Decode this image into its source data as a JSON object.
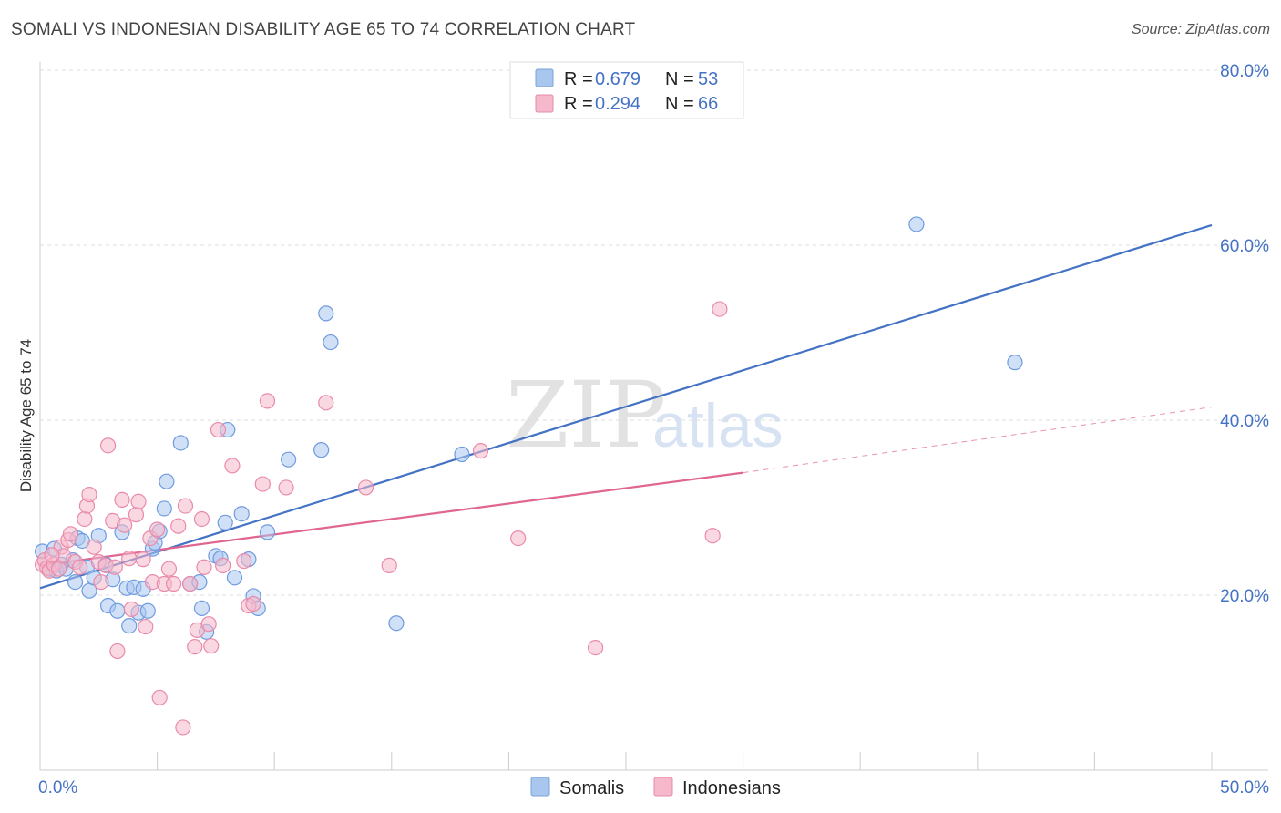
{
  "title": "SOMALI VS INDONESIAN DISABILITY AGE 65 TO 74 CORRELATION CHART",
  "source": "Source: ZipAtlas.com",
  "watermark": {
    "zip": "ZIP",
    "atlas": "atlas"
  },
  "legend": {
    "rows": [
      {
        "r_label": "R =",
        "r_value": "0.679",
        "n_label": "N =",
        "n_value": "53"
      },
      {
        "r_label": "R =",
        "r_value": "0.294",
        "n_label": "N =",
        "n_value": "66"
      }
    ]
  },
  "chart_data": {
    "type": "scatter",
    "ylabel": "Disability Age 65 to 74",
    "xlim": [
      0,
      50
    ],
    "ylim": [
      0,
      80
    ],
    "x_tick_labels": [
      "0.0%",
      "50.0%"
    ],
    "y_ticks": [
      20,
      40,
      60,
      80
    ],
    "y_tick_labels": [
      "20.0%",
      "40.0%",
      "60.0%",
      "80.0%"
    ],
    "grid": true,
    "legend_position": "top-center",
    "colors": {
      "somalis": "#4472c4",
      "somalis_fill": "#a9c6ee",
      "indonesians": "#e06690",
      "indonesians_fill": "#f6b8cb"
    },
    "series": [
      {
        "name": "Somalis",
        "points": [
          [
            0.1,
            25.0
          ],
          [
            0.4,
            23.0
          ],
          [
            0.6,
            25.3
          ],
          [
            0.7,
            22.8
          ],
          [
            0.9,
            23.5
          ],
          [
            1.1,
            23.0
          ],
          [
            1.4,
            24.0
          ],
          [
            1.5,
            21.5
          ],
          [
            1.6,
            26.5
          ],
          [
            1.8,
            26.2
          ],
          [
            2.0,
            23.2
          ],
          [
            2.1,
            20.5
          ],
          [
            2.3,
            22.0
          ],
          [
            2.5,
            26.8
          ],
          [
            2.8,
            23.5
          ],
          [
            2.9,
            18.8
          ],
          [
            3.1,
            21.8
          ],
          [
            3.3,
            18.2
          ],
          [
            3.5,
            27.2
          ],
          [
            3.7,
            20.8
          ],
          [
            3.8,
            16.5
          ],
          [
            4.0,
            20.9
          ],
          [
            4.2,
            18.0
          ],
          [
            4.4,
            20.7
          ],
          [
            4.6,
            18.2
          ],
          [
            4.8,
            25.3
          ],
          [
            4.9,
            26.0
          ],
          [
            5.1,
            27.3
          ],
          [
            5.3,
            29.9
          ],
          [
            5.4,
            33.0
          ],
          [
            6.0,
            37.4
          ],
          [
            6.4,
            21.3
          ],
          [
            6.8,
            21.5
          ],
          [
            6.9,
            18.5
          ],
          [
            7.1,
            15.8
          ],
          [
            7.5,
            24.5
          ],
          [
            7.7,
            24.2
          ],
          [
            7.9,
            28.3
          ],
          [
            8.0,
            38.9
          ],
          [
            8.3,
            22.0
          ],
          [
            8.6,
            29.3
          ],
          [
            8.9,
            24.1
          ],
          [
            9.1,
            19.9
          ],
          [
            9.3,
            18.5
          ],
          [
            9.7,
            27.2
          ],
          [
            10.6,
            35.5
          ],
          [
            12.0,
            36.6
          ],
          [
            12.2,
            52.2
          ],
          [
            12.4,
            48.9
          ],
          [
            15.2,
            16.8
          ],
          [
            18.0,
            36.1
          ],
          [
            37.4,
            62.4
          ],
          [
            41.6,
            46.6
          ]
        ]
      },
      {
        "name": "Indonesians",
        "points": [
          [
            0.1,
            23.5
          ],
          [
            0.2,
            24.0
          ],
          [
            0.3,
            23.1
          ],
          [
            0.4,
            22.8
          ],
          [
            0.6,
            23.5
          ],
          [
            0.8,
            23.0
          ],
          [
            0.9,
            25.5
          ],
          [
            1.0,
            24.5
          ],
          [
            1.2,
            26.3
          ],
          [
            1.3,
            27.0
          ],
          [
            1.5,
            23.8
          ],
          [
            1.7,
            23.2
          ],
          [
            1.9,
            28.7
          ],
          [
            2.0,
            30.2
          ],
          [
            2.1,
            31.5
          ],
          [
            2.3,
            25.5
          ],
          [
            2.5,
            23.8
          ],
          [
            2.6,
            21.5
          ],
          [
            2.8,
            23.4
          ],
          [
            2.9,
            37.1
          ],
          [
            3.1,
            28.5
          ],
          [
            3.2,
            23.2
          ],
          [
            3.3,
            13.6
          ],
          [
            3.5,
            30.9
          ],
          [
            3.6,
            28.0
          ],
          [
            3.8,
            24.2
          ],
          [
            3.9,
            18.4
          ],
          [
            4.1,
            29.2
          ],
          [
            4.2,
            30.7
          ],
          [
            4.4,
            24.1
          ],
          [
            4.5,
            16.4
          ],
          [
            4.7,
            26.5
          ],
          [
            4.8,
            21.5
          ],
          [
            5.0,
            27.5
          ],
          [
            5.1,
            8.3
          ],
          [
            5.3,
            21.3
          ],
          [
            5.5,
            23.0
          ],
          [
            5.7,
            21.3
          ],
          [
            5.9,
            27.9
          ],
          [
            6.1,
            4.9
          ],
          [
            6.2,
            30.2
          ],
          [
            6.4,
            21.3
          ],
          [
            6.6,
            14.1
          ],
          [
            6.7,
            16.0
          ],
          [
            6.9,
            28.7
          ],
          [
            7.0,
            23.2
          ],
          [
            7.2,
            16.7
          ],
          [
            7.3,
            14.2
          ],
          [
            7.6,
            38.9
          ],
          [
            7.8,
            23.4
          ],
          [
            8.2,
            34.8
          ],
          [
            8.7,
            23.9
          ],
          [
            8.9,
            18.8
          ],
          [
            9.1,
            19.0
          ],
          [
            9.5,
            32.7
          ],
          [
            9.7,
            42.2
          ],
          [
            10.5,
            32.3
          ],
          [
            12.2,
            42.0
          ],
          [
            13.9,
            32.3
          ],
          [
            14.9,
            23.4
          ],
          [
            18.8,
            36.5
          ],
          [
            20.4,
            26.5
          ],
          [
            23.7,
            14.0
          ],
          [
            28.7,
            26.8
          ],
          [
            29.0,
            52.7
          ],
          [
            0.5,
            24.6
          ]
        ]
      }
    ],
    "trendlines": [
      {
        "series": "Somalis",
        "x": [
          0,
          50
        ],
        "y": [
          20.8,
          62.3
        ]
      },
      {
        "series": "Indonesians",
        "x": [
          0,
          30
        ],
        "y": [
          23.4,
          34.0
        ],
        "dashed_extension_x": [
          30,
          50
        ],
        "dashed_extension_y": [
          34.0,
          41.5
        ]
      }
    ]
  },
  "bottom_legend": {
    "items": [
      "Somalis",
      "Indonesians"
    ]
  }
}
